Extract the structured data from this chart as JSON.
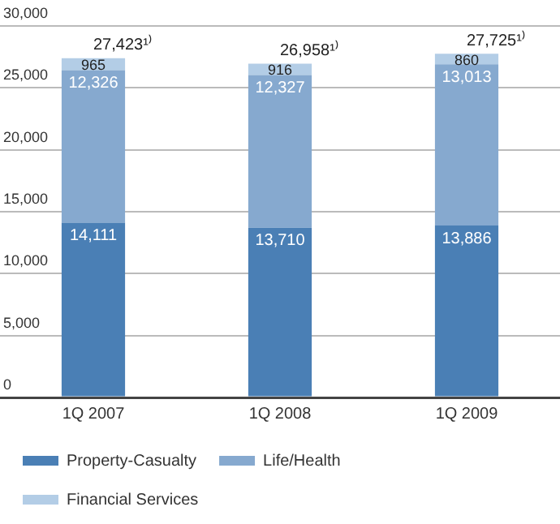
{
  "chart_data": {
    "type": "bar",
    "stacked": true,
    "categories": [
      "1Q 2007",
      "1Q 2008",
      "1Q 2009"
    ],
    "series": [
      {
        "name": "Property-Casualty",
        "color": "#4a7fb5",
        "values": [
          14111,
          13710,
          13886
        ],
        "value_labels": [
          "14,111",
          "13,710",
          "13,886"
        ]
      },
      {
        "name": "Life/Health",
        "color": "#86a9cf",
        "values": [
          12326,
          12327,
          13013
        ],
        "value_labels": [
          "12,326",
          "12,327",
          "13,013"
        ]
      },
      {
        "name": "Financial Services",
        "color": "#b3cde6",
        "values": [
          965,
          916,
          860
        ],
        "value_labels": [
          "965",
          "916",
          "860"
        ]
      }
    ],
    "ylim": [
      0,
      30000
    ],
    "yticks": [
      {
        "value": 0,
        "label": "0"
      },
      {
        "value": 5000,
        "label": "5,000"
      },
      {
        "value": 10000,
        "label": "10,000"
      },
      {
        "value": 15000,
        "label": "15,000"
      },
      {
        "value": 20000,
        "label": "20,000"
      },
      {
        "value": 25000,
        "label": "25,000"
      },
      {
        "value": 30000,
        "label": "30,000"
      }
    ],
    "grid": "y",
    "legend": "bottom left",
    "annotations": [
      {
        "text": "27,423¹⁾",
        "x": "1Q 2007",
        "y": 27423
      },
      {
        "text": "26,958¹⁾",
        "x": "1Q 2008",
        "y": 26958
      },
      {
        "text": "27,725¹⁾",
        "x": "1Q 2009",
        "y": 27725
      }
    ]
  }
}
